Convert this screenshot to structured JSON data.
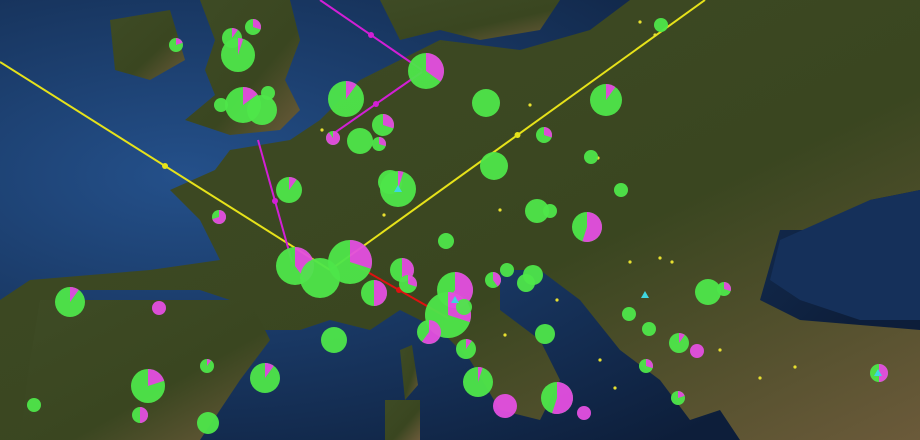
{
  "map": {
    "type": "satellite map with pie-chart markers and flow lines",
    "colors": {
      "ocean": "#1d3f73",
      "deep_ocean": "#0d1e3a",
      "land": "#3c4a22",
      "land_dry": "#6b5a3a",
      "pie_primary": "#4ee64a",
      "pie_secondary": "#e44fe0",
      "pie_tertiary": "#3fd6e0",
      "flow_yellow": "#e6e21a",
      "flow_magenta": "#d21fd6",
      "flow_red": "#e01010",
      "point_yellow": "#e8e030"
    },
    "markers": [
      0.2,
      0.1,
      0.05,
      0.3,
      0.15,
      0,
      0,
      0,
      0.35,
      0.1,
      0.9,
      0,
      0.3,
      0.3,
      0,
      0.1,
      0.3,
      0,
      0,
      0,
      0,
      0.05,
      0.1,
      0.7,
      0,
      0,
      0.55,
      0,
      0.4,
      0,
      0.3,
      0.5,
      0.5,
      0.3,
      0.6,
      0.3,
      0.6,
      0,
      0.4,
      0,
      0,
      0,
      0.1,
      0,
      0.1,
      1,
      0.2,
      0.5,
      0.1,
      0.1,
      0,
      0,
      0.05,
      1,
      0.55,
      1,
      0,
      0,
      0,
      0,
      0.3,
      0.1,
      1,
      0.3,
      0,
      0.5,
      0.2
    ]
  }
}
